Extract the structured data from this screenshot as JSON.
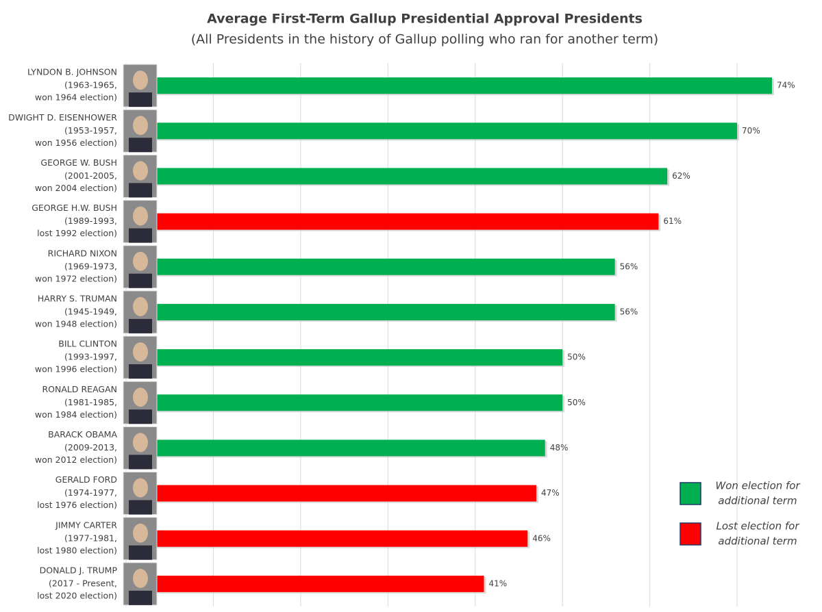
{
  "chart_data": {
    "type": "barh",
    "title": "Average First-Term Gallup Presidential Approval Presidents",
    "subtitle": "(All Presidents in the history of Gallup polling who ran for another term)",
    "categories": [
      "LYNDON B. JOHNSON",
      "DWIGHT D. EISENHOWER",
      "GEORGE W. BUSH",
      "GEORGE H.W. BUSH",
      "RICHARD NIXON",
      "HARRY S. TRUMAN",
      "BILL CLINTON",
      "RONALD REAGAN",
      "BARACK OBAMA",
      "GERALD FORD",
      "JIMMY CARTER",
      "DONALD J. TRUMP"
    ],
    "terms": [
      "(1963-1965,",
      "(1953-1957,",
      "(2001-2005,",
      "(1989-1993,",
      "(1969-1973,",
      "(1945-1949,",
      "(1993-1997,",
      "(1981-1985,",
      "(2009-2013,",
      "(1974-1977,",
      "(1977-1981,",
      "(2017 - Present,"
    ],
    "outcomes": [
      "won 1964 election)",
      "won 1956 election)",
      "won 2004 election)",
      "lost 1992 election)",
      "won 1972 election)",
      "won 1948 election)",
      "won 1996 election)",
      "won 1984 election)",
      "won 2012 election)",
      "lost 1976 election)",
      "lost 1980 election)",
      "lost 2020 election)"
    ],
    "values": [
      74,
      70,
      62,
      61,
      56,
      56,
      50,
      50,
      48,
      47,
      46,
      41
    ],
    "value_labels": [
      "74%",
      "70%",
      "62%",
      "61%",
      "56%",
      "56%",
      "50%",
      "50%",
      "48%",
      "47%",
      "46%",
      "41%"
    ],
    "colors": [
      "#00b050",
      "#00b050",
      "#00b050",
      "#ff0000",
      "#00b050",
      "#00b050",
      "#00b050",
      "#00b050",
      "#00b050",
      "#ff0000",
      "#ff0000",
      "#ff0000"
    ],
    "legend": [
      {
        "color": "#00b050",
        "lines": [
          "Won election for",
          "additional term"
        ]
      },
      {
        "color": "#ff0000",
        "lines": [
          "Lost election for",
          "additional term"
        ]
      }
    ],
    "xlim": [
      0,
      78
    ],
    "xticks": [
      0,
      10,
      20,
      30,
      40,
      50,
      60,
      70
    ],
    "grid": true
  }
}
